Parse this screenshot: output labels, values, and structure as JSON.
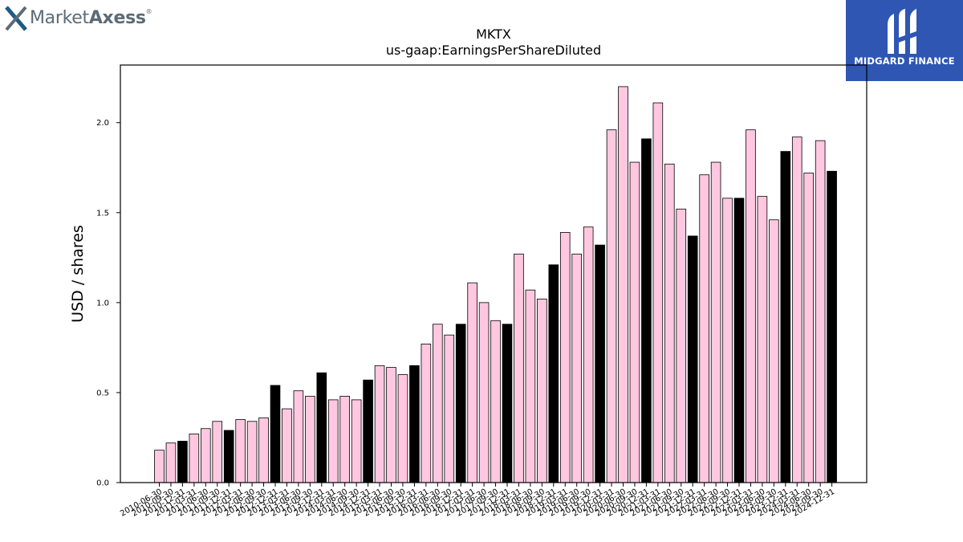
{
  "brand_left": {
    "name_light": "Market",
    "name_bold": "Axess",
    "reg": "®"
  },
  "brand_right": {
    "name": "MIDGARD FINANCE"
  },
  "colors": {
    "highlight": "#000000",
    "normal": "#ffc8e0",
    "edge": "#000000",
    "brand_blue": "#2f56b2"
  },
  "chart_data": {
    "type": "bar",
    "title": "MKTX",
    "subtitle": "us-gaap:EarningsPerShareDiluted",
    "xlabel": "",
    "ylabel": "USD / shares",
    "ylim": [
      0,
      2.32
    ],
    "yticks": [
      0.0,
      0.5,
      1.0,
      1.5,
      2.0
    ],
    "ytick_labels": [
      "0.0",
      "0.5",
      "1.0",
      "1.5",
      "2.0"
    ],
    "grid": false,
    "categories": [
      "2010-06-30",
      "2010-09-30",
      "2010-12-31",
      "2011-03-31",
      "2011-06-30",
      "2011-09-30",
      "2011-12-31",
      "2012-03-31",
      "2012-06-30",
      "2012-09-30",
      "2012-12-31",
      "2013-03-31",
      "2013-06-30",
      "2013-09-30",
      "2013-12-31",
      "2014-03-31",
      "2014-06-30",
      "2014-09-30",
      "2014-12-31",
      "2015-03-31",
      "2015-06-30",
      "2015-09-30",
      "2015-12-31",
      "2016-03-31",
      "2016-06-30",
      "2016-09-30",
      "2016-12-31",
      "2017-03-31",
      "2017-06-30",
      "2017-09-30",
      "2017-12-31",
      "2018-03-31",
      "2018-06-30",
      "2018-09-30",
      "2018-12-31",
      "2019-03-31",
      "2019-06-30",
      "2019-09-30",
      "2019-12-31",
      "2020-03-31",
      "2020-06-30",
      "2020-09-30",
      "2020-12-31",
      "2021-03-31",
      "2021-06-30",
      "2021-09-30",
      "2021-12-31",
      "2022-03-31",
      "2022-06-30",
      "2022-09-30",
      "2022-12-31",
      "2023-03-31",
      "2023-06-30",
      "2023-09-30",
      "2023-12-31",
      "2024-03-31",
      "2024-06-30",
      "2024-09-30",
      "2024-12-31"
    ],
    "values": [
      0.18,
      0.22,
      0.23,
      0.27,
      0.3,
      0.34,
      0.29,
      0.35,
      0.34,
      0.36,
      0.54,
      0.41,
      0.51,
      0.48,
      0.61,
      0.46,
      0.48,
      0.46,
      0.57,
      0.65,
      0.64,
      0.6,
      0.65,
      0.77,
      0.88,
      0.82,
      0.88,
      1.11,
      1.0,
      0.9,
      0.88,
      1.27,
      1.07,
      1.02,
      1.21,
      1.39,
      1.27,
      1.42,
      1.32,
      1.96,
      2.2,
      1.78,
      1.91,
      2.11,
      1.77,
      1.52,
      1.37,
      1.71,
      1.78,
      1.58,
      1.58,
      1.96,
      1.59,
      1.46,
      1.84,
      1.92,
      1.72,
      1.9,
      1.73
    ],
    "highlighted": [
      false,
      false,
      true,
      false,
      false,
      false,
      true,
      false,
      false,
      false,
      true,
      false,
      false,
      false,
      true,
      false,
      false,
      false,
      true,
      false,
      false,
      false,
      true,
      false,
      false,
      false,
      true,
      false,
      false,
      false,
      true,
      false,
      false,
      false,
      true,
      false,
      false,
      false,
      true,
      false,
      false,
      false,
      true,
      false,
      false,
      false,
      true,
      false,
      false,
      false,
      true,
      false,
      false,
      false,
      true,
      false,
      false,
      false,
      true
    ]
  }
}
